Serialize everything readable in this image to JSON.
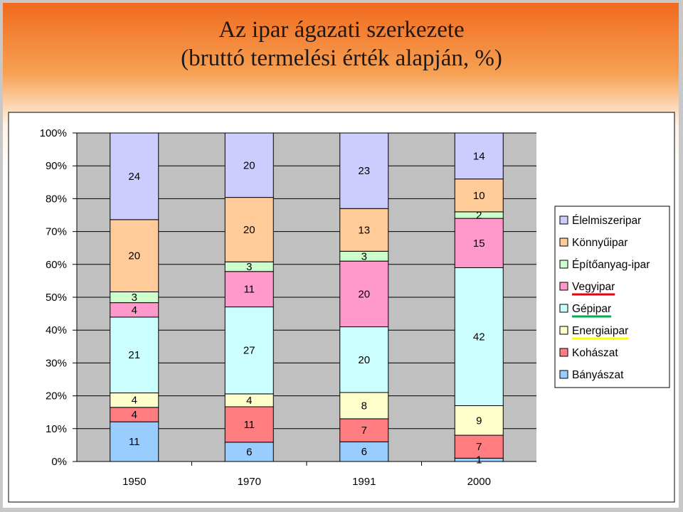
{
  "title": {
    "line1": "Az ipar ágazati szerkezete",
    "line2": "(bruttó termelési érték alapján, %)"
  },
  "chart_data": {
    "type": "bar",
    "stacked": "percent",
    "categories": [
      "1950",
      "1970",
      "1991",
      "2000"
    ],
    "y_ticks": [
      "0%",
      "10%",
      "20%",
      "30%",
      "40%",
      "50%",
      "60%",
      "70%",
      "80%",
      "90%",
      "100%"
    ],
    "ylim": [
      0,
      100
    ],
    "legend_position": "right",
    "series": [
      {
        "name": "Bányászat",
        "color": "#99ccff",
        "values": [
          11,
          6,
          6,
          1
        ]
      },
      {
        "name": "Kohászat",
        "color": "#ff7c80",
        "values": [
          4,
          11,
          7,
          7
        ]
      },
      {
        "name": "Energiaipar",
        "color": "#ffffcc",
        "values": [
          4,
          4,
          8,
          9
        ]
      },
      {
        "name": "Gépipar",
        "color": "#ccffff",
        "values": [
          21,
          27,
          20,
          42
        ]
      },
      {
        "name": "Vegyipar",
        "color": "#ff99cc",
        "values": [
          4,
          11,
          20,
          15
        ]
      },
      {
        "name": "Építőanyag-ipar",
        "color": "#ccffcc",
        "values": [
          3,
          3,
          3,
          2
        ]
      },
      {
        "name": "Könnyűipar",
        "color": "#ffcc99",
        "values": [
          20,
          20,
          13,
          10
        ]
      },
      {
        "name": "Élelmiszeripar",
        "color": "#ccccff",
        "values": [
          24,
          20,
          23,
          14
        ]
      }
    ],
    "legend_order": [
      "Élelmiszeripar",
      "Könnyűipar",
      "Építőanyag-ipar",
      "Vegyipar",
      "Gépipar",
      "Energiaipar",
      "Kohászat",
      "Bányászat"
    ],
    "legend_underlines": {
      "Vegyipar": "#e8000b",
      "Gépipar": "#00b050",
      "Energiaipar": "#ffff00"
    }
  }
}
